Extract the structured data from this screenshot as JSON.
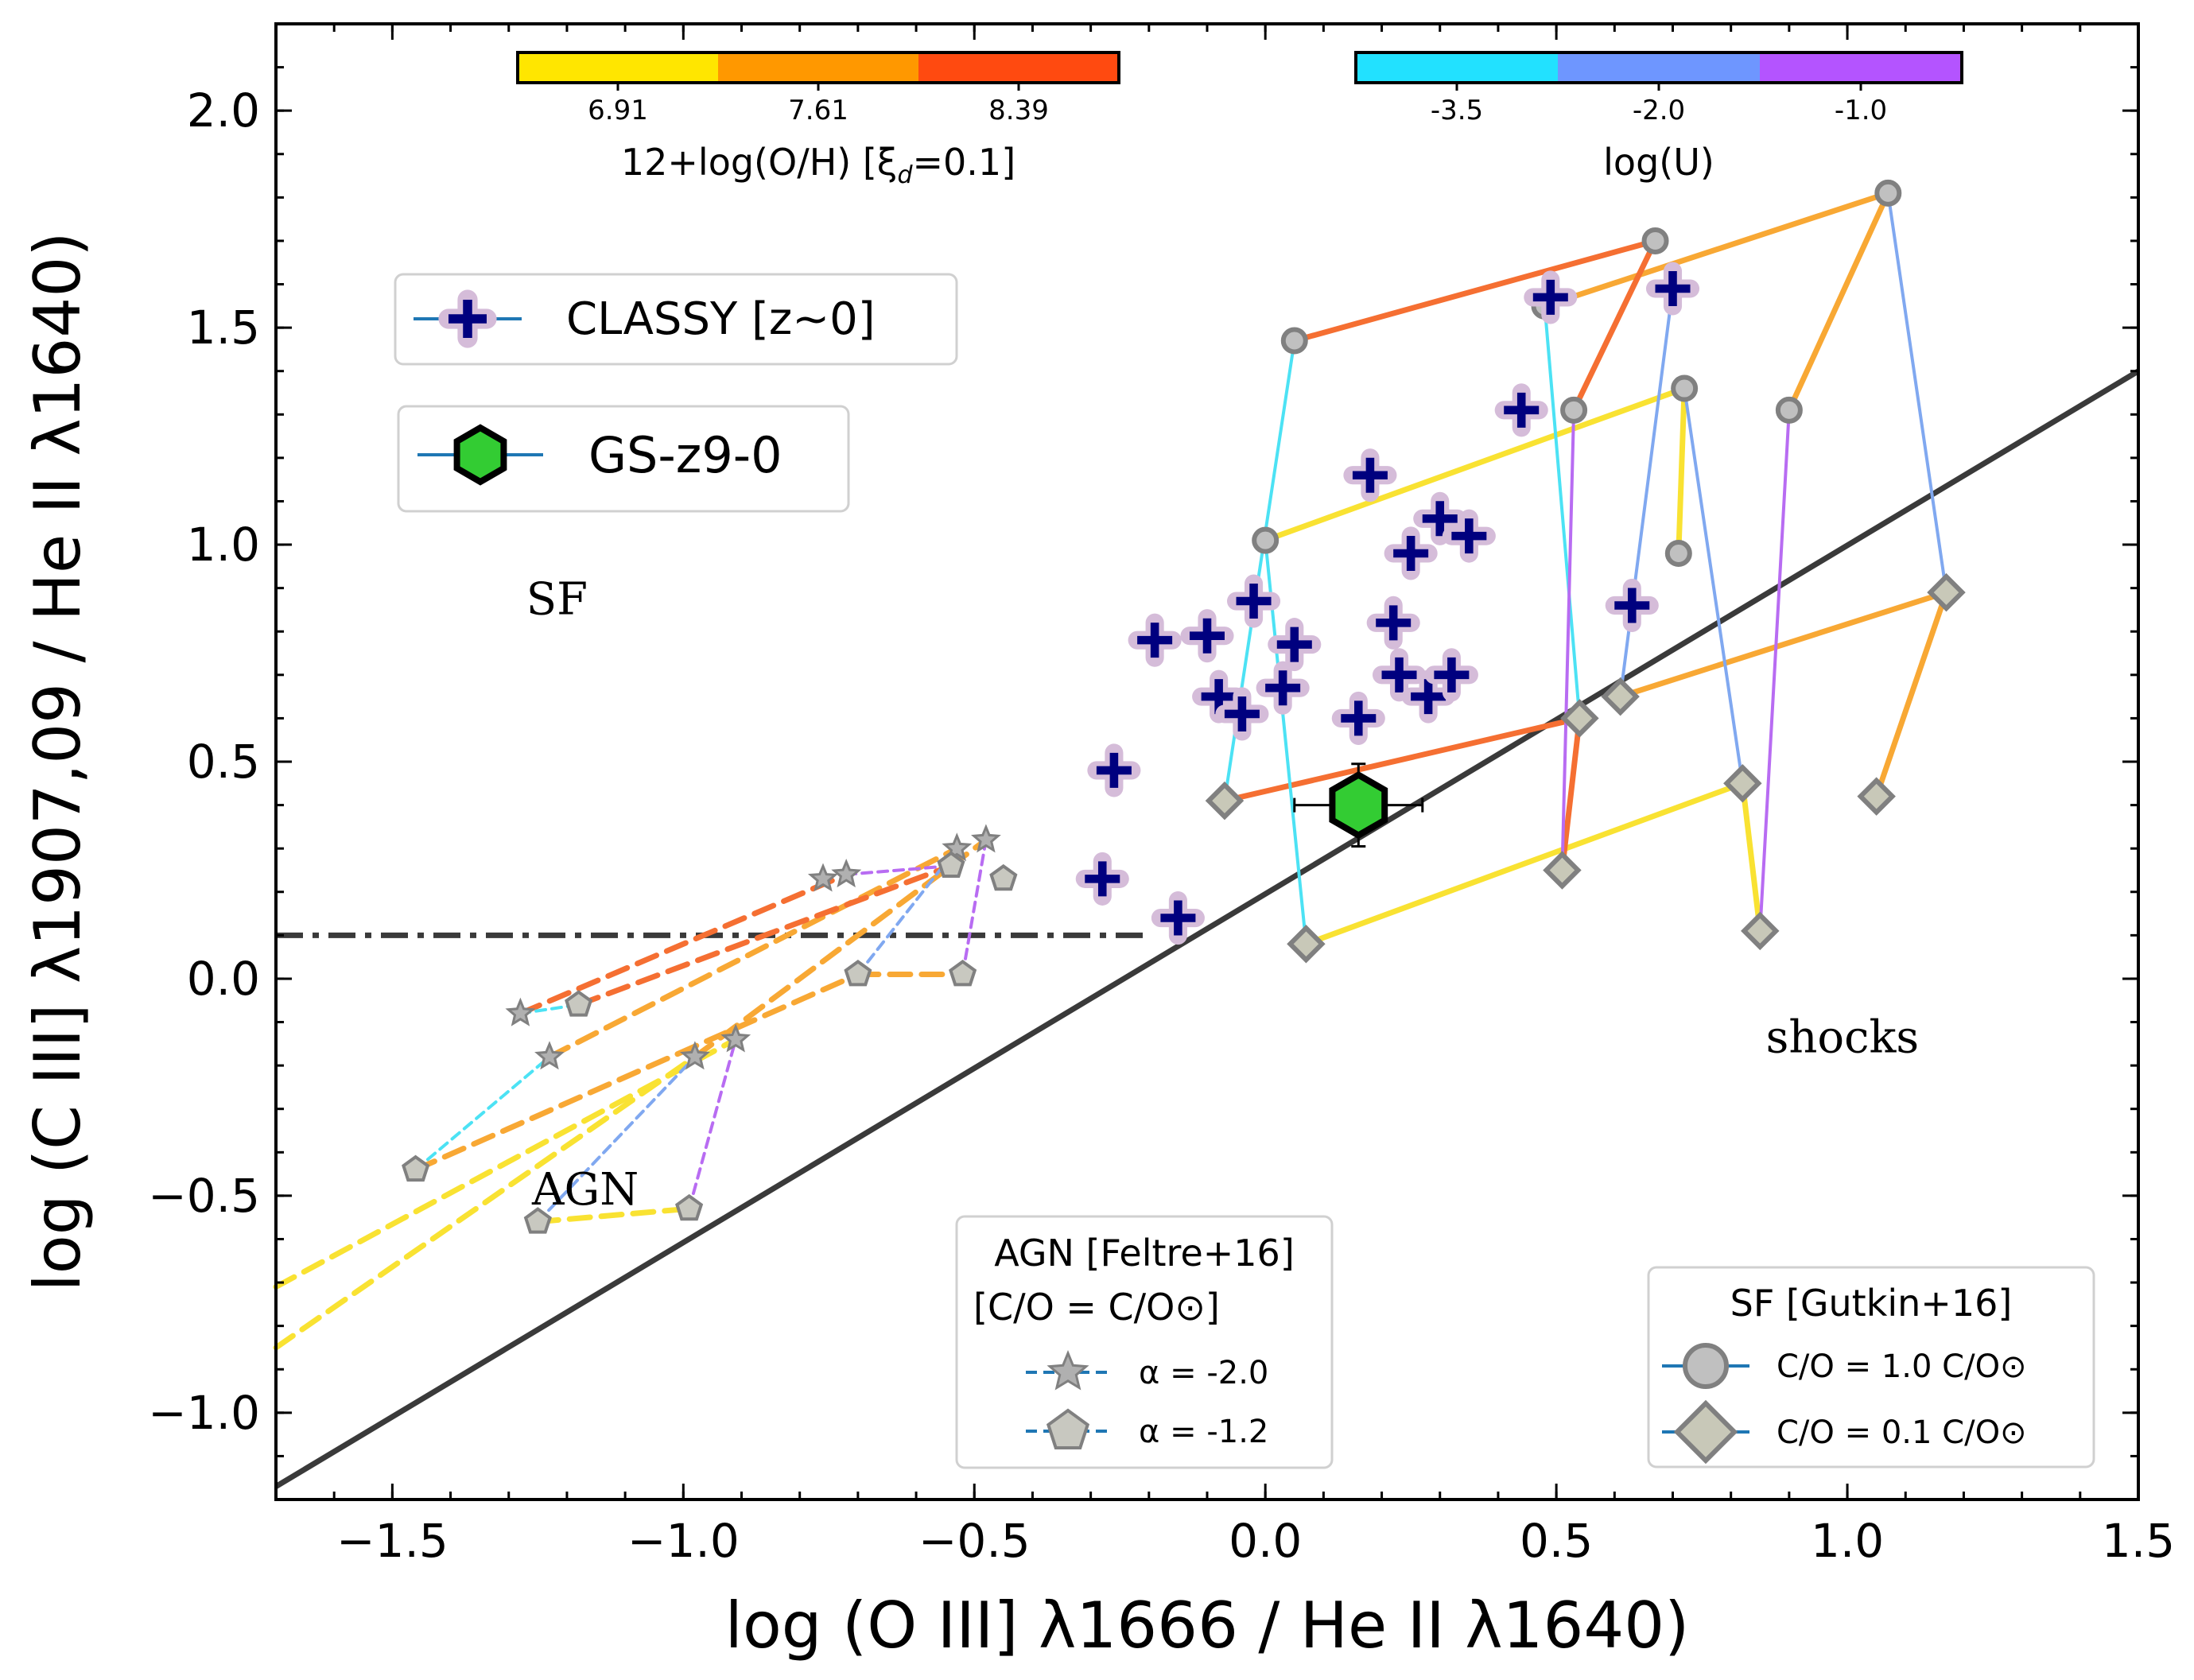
{
  "chart_data": {
    "type": "scatter",
    "title": "",
    "xlabel": "log (O III] λ1666 / He II λ1640)",
    "ylabel": "log (C III] λ1907,09 / He II λ1640)",
    "xlim": [
      -1.7,
      1.5
    ],
    "ylim": [
      -1.2,
      2.2
    ],
    "xticks": [
      -1.5,
      -1.0,
      -0.5,
      0.0,
      0.5,
      1.0,
      1.5
    ],
    "xtick_labels": [
      "−1.5",
      "−1.0",
      "−0.5",
      "0.0",
      "0.5",
      "1.0",
      "1.5"
    ],
    "yticks": [
      -1.0,
      -0.5,
      0.0,
      0.5,
      1.0,
      1.5,
      2.0
    ],
    "ytick_labels": [
      "−1.0",
      "−0.5",
      "0.0",
      "0.5",
      "1.0",
      "1.5",
      "2.0"
    ],
    "regions": [
      {
        "name": "SF",
        "x": -1.27,
        "y": 0.84
      },
      {
        "name": "AGN",
        "x": -1.26,
        "y": -0.52
      },
      {
        "name": "shocks",
        "x": 0.86,
        "y": -0.17
      }
    ],
    "dividing_lines": [
      {
        "name": "sf-shock-boundary",
        "style": "solid",
        "color": "#3a3a3a",
        "x": [
          -1.7,
          1.5
        ],
        "y": [
          -1.17,
          1.4
        ]
      },
      {
        "name": "agn-boundary",
        "style": "dashdot",
        "color": "#3a3a3a",
        "x": [
          -1.7,
          -0.2
        ],
        "y": [
          0.1,
          0.1
        ]
      }
    ],
    "colorbars": [
      {
        "title": "12+log(O/H) [ξ",
        "title_sub": "d",
        "title_end": "=0.1]",
        "ticks": [
          "6.91",
          "7.61",
          "8.39"
        ],
        "colors": [
          "#ffe600",
          "#ff9800",
          "#ff4a10"
        ]
      },
      {
        "title": "log(U)",
        "ticks": [
          "-3.5",
          "-2.0",
          "-1.0"
        ],
        "colors": [
          "#22e1ff",
          "#6e96ff",
          "#b454ff"
        ]
      }
    ],
    "grid_line_colors": {
      "6.91": "#f9e232",
      "7.61": "#f8a834",
      "8.39": "#f56f32",
      "-3.5": "#4ce2f4",
      "-2.0": "#80a8f0",
      "-1.0": "#b86cf2"
    },
    "series": [
      {
        "name": "CLASSY [z~0]",
        "marker": "plus",
        "color": "#00007f",
        "halo": "#d3bcd8",
        "points": [
          [
            0.49,
            1.57
          ],
          [
            0.7,
            1.59
          ],
          [
            0.44,
            1.31
          ],
          [
            0.18,
            1.16
          ],
          [
            0.3,
            1.06
          ],
          [
            0.35,
            1.02
          ],
          [
            0.25,
            0.98
          ],
          [
            -0.19,
            0.78
          ],
          [
            -0.1,
            0.79
          ],
          [
            -0.02,
            0.87
          ],
          [
            0.05,
            0.77
          ],
          [
            0.22,
            0.82
          ],
          [
            0.63,
            0.86
          ],
          [
            -0.08,
            0.65
          ],
          [
            -0.04,
            0.61
          ],
          [
            0.03,
            0.67
          ],
          [
            0.23,
            0.7
          ],
          [
            0.28,
            0.65
          ],
          [
            0.32,
            0.7
          ],
          [
            0.16,
            0.6
          ],
          [
            -0.26,
            0.48
          ],
          [
            -0.28,
            0.23
          ],
          [
            -0.15,
            0.14
          ]
        ]
      },
      {
        "name": "GS-z9-0",
        "marker": "hexagon",
        "color": "#33cc33",
        "points": [
          [
            0.16,
            0.4
          ]
        ],
        "xerr": 0.11,
        "yerr": 0.095
      },
      {
        "name": "SF C/O = 1.0 C/O⊙",
        "marker": "circle",
        "color": "#c0c0c0",
        "points": [
          [
            0.05,
            1.47
          ],
          [
            0.67,
            1.7
          ],
          [
            0.0,
            1.01
          ],
          [
            0.72,
            1.36
          ],
          [
            0.48,
            1.55
          ],
          [
            1.07,
            1.81
          ],
          [
            0.53,
            1.31
          ],
          [
            0.71,
            0.98
          ],
          [
            0.9,
            1.31
          ]
        ]
      },
      {
        "name": "SF C/O = 0.1 C/O⊙",
        "marker": "diamond",
        "color": "#c0c0c0",
        "points": [
          [
            -0.07,
            0.41
          ],
          [
            0.54,
            0.6
          ],
          [
            0.07,
            0.08
          ],
          [
            0.82,
            0.45
          ],
          [
            0.61,
            0.65
          ],
          [
            1.17,
            0.89
          ],
          [
            0.51,
            0.25
          ],
          [
            0.85,
            0.11
          ],
          [
            1.05,
            0.42
          ]
        ]
      },
      {
        "name": "AGN α = -2.0",
        "marker": "star",
        "color": "#a0a0a0",
        "points": [
          [
            -1.28,
            -0.08
          ],
          [
            -1.23,
            -0.18
          ],
          [
            -0.98,
            -0.18
          ],
          [
            -0.91,
            -0.14
          ],
          [
            -0.72,
            0.24
          ],
          [
            -0.76,
            0.23
          ],
          [
            -0.53,
            0.3
          ],
          [
            -0.48,
            0.32
          ]
        ]
      },
      {
        "name": "AGN α = -1.2",
        "marker": "pentagon",
        "color": "#c8c8c8",
        "points": [
          [
            -1.18,
            -0.06
          ],
          [
            -1.46,
            -0.44
          ],
          [
            -1.25,
            -0.56
          ],
          [
            -0.99,
            -0.53
          ],
          [
            -0.7,
            0.01
          ],
          [
            -0.52,
            0.01
          ],
          [
            -0.54,
            0.26
          ],
          [
            -0.45,
            0.23
          ]
        ]
      }
    ],
    "legends": {
      "classy": "CLASSY [z~0]",
      "gs": "GS-z9-0",
      "agn_title_1": "AGN [Feltre+16]",
      "agn_title_2": "[C/O = C/O⊙]",
      "agn_alpha_1": "α = -2.0",
      "agn_alpha_2": "α = -1.2",
      "sf_title": "SF [Gutkin+16]",
      "sf_co_1": "C/O = 1.0 C/O⊙",
      "sf_co_2": "C/O = 0.1 C/O⊙"
    }
  }
}
